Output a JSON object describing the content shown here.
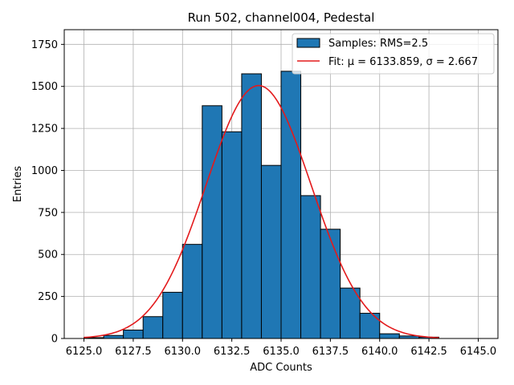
{
  "chart_data": {
    "type": "bar",
    "title": "Run 502, channel004, Pedestal",
    "xlabel": "ADC Counts",
    "ylabel": "Entries",
    "xlim": [
      6124.0,
      6146.0
    ],
    "ylim": [
      0,
      1837.5
    ],
    "grid": true,
    "xticks": [
      6125.0,
      6127.5,
      6130.0,
      6132.5,
      6135.0,
      6137.5,
      6140.0,
      6142.5,
      6145.0
    ],
    "xtick_labels": [
      "6125.0",
      "6127.5",
      "6130.0",
      "6132.5",
      "6135.0",
      "6137.5",
      "6140.0",
      "6142.5",
      "6145.0"
    ],
    "yticks": [
      0,
      250,
      500,
      750,
      1000,
      1250,
      1500,
      1750
    ],
    "ytick_labels": [
      "0",
      "250",
      "500",
      "750",
      "1000",
      "1250",
      "1500",
      "1750"
    ],
    "bins": [
      6125,
      6126,
      6127,
      6128,
      6129,
      6130,
      6131,
      6132,
      6133,
      6134,
      6135,
      6136,
      6137,
      6138,
      6139,
      6140,
      6141,
      6142
    ],
    "values": [
      5,
      18,
      50,
      130,
      275,
      560,
      1385,
      1230,
      1575,
      1030,
      1590,
      850,
      650,
      300,
      150,
      28,
      15,
      8
    ],
    "bar_color": "#1f77b4",
    "bar_edge_color": "#000000",
    "fit": {
      "mu": 6133.859,
      "sigma": 2.667,
      "amplitude": 1505,
      "x_start": 6125.0,
      "x_end": 6143.0,
      "color": "#e31a1c"
    },
    "legend": {
      "position": "top-right",
      "entries": [
        {
          "label": "Samples: RMS=2.5",
          "kind": "patch"
        },
        {
          "label": "Fit: μ = 6133.859, σ = 2.667",
          "kind": "line"
        }
      ]
    }
  }
}
